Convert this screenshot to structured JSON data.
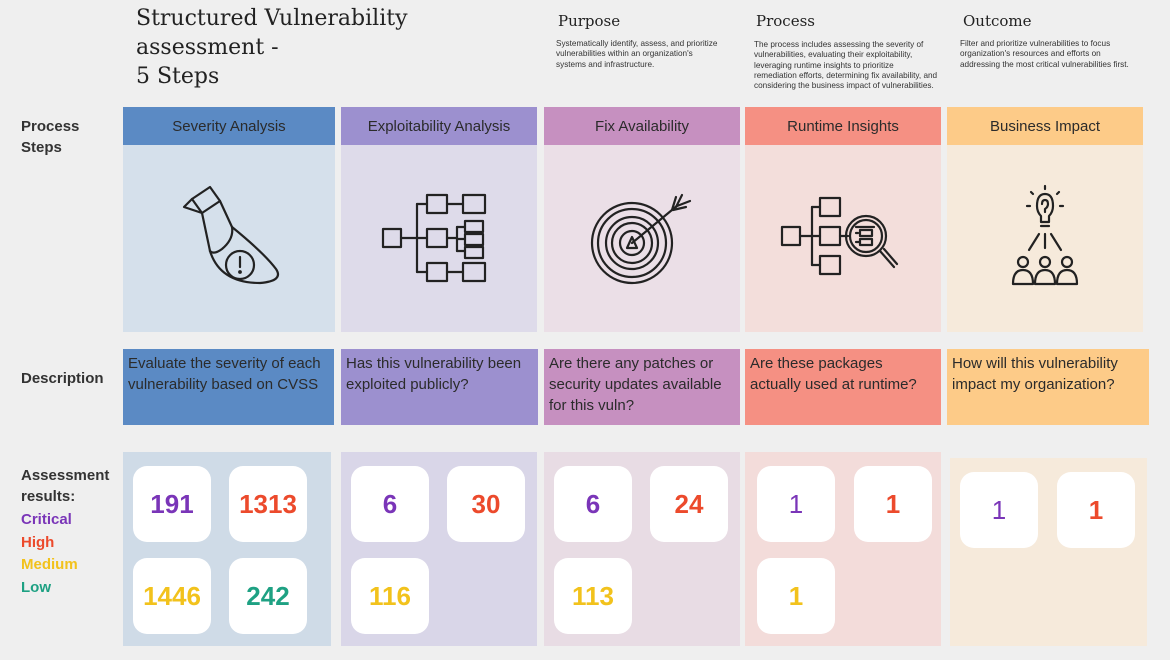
{
  "title_lines": [
    "Structured Vulnerability",
    "assessment -",
    "5 Steps"
  ],
  "headers": [
    {
      "title": "Purpose",
      "text": "Systematically identify, assess, and prioritize vulnerabilities within an organization's systems and infrastructure."
    },
    {
      "title": "Process",
      "text": "The process includes assessing the severity of vulnerabilities, evaluating their exploitability, leveraging runtime insights to prioritize remediation efforts, determining fix availability, and considering the business impact of vulnerabilities."
    },
    {
      "title": "Outcome",
      "text": "Filter and prioritize vulnerabilities to focus organization's resources and efforts on addressing the most critical vulnerabilities first."
    }
  ],
  "row_labels": {
    "process_steps": "Process Steps",
    "description": "Description",
    "assessment_results": "Assessment results:"
  },
  "legend": [
    {
      "label": "Critical",
      "color": "#7a35b8"
    },
    {
      "label": "High",
      "color": "#ec4a2c"
    },
    {
      "label": "Medium",
      "color": "#f2c21c"
    },
    {
      "label": "Low",
      "color": "#1ea183"
    }
  ],
  "colors": {
    "critical": "#7a35b8",
    "high": "#ec4a2c",
    "medium": "#f2c21c",
    "low": "#1ea183",
    "background": "#efefef"
  },
  "steps": [
    {
      "name": "Severity Analysis",
      "icon": "spotlight-warning-icon",
      "description": "Evaluate the severity of each vulnerability based on CVSS",
      "header_color": "#5b8ac4",
      "panel_color": "#d5e0eb",
      "desc_color": "#5b8ac4",
      "results_color": "#cfdbe7",
      "results": {
        "critical": "191",
        "high": "1313",
        "medium": "1446",
        "low": "242"
      }
    },
    {
      "name": "Exploitability Analysis",
      "icon": "flowchart-icon",
      "description": "Has this vulnerability been exploited publicly?",
      "header_color": "#9c90cf",
      "panel_color": "#dedbea",
      "desc_color": "#9c90cf",
      "results_color": "#d9d6e8",
      "results": {
        "critical": "6",
        "high": "30",
        "medium": "116"
      }
    },
    {
      "name": "Fix Availability",
      "icon": "target-icon",
      "description": "Are there any patches or security updates available for this vuln?",
      "header_color": "#c690c0",
      "panel_color": "#ebdfe7",
      "desc_color": "#c690c0",
      "results_color": "#e8dce4",
      "results": {
        "critical": "6",
        "high": "24",
        "medium": "113"
      }
    },
    {
      "name": "Runtime Insights",
      "icon": "flowchart-magnifier-icon",
      "description": "Are these packages actually used at runtime?",
      "header_color": "#f59083",
      "panel_color": "#f3dedb",
      "desc_color": "#f59083",
      "results_color": "#f3dcda",
      "results": {
        "critical": "1",
        "high": "1",
        "medium": "1"
      }
    },
    {
      "name": "Business Impact",
      "icon": "idea-team-icon",
      "description": "How will this vulnerability impact my organization?",
      "header_color": "#fdcb88",
      "panel_color": "#f6eadb",
      "desc_color": "#fdcb88",
      "results_color": "#f6eadb",
      "results": {
        "critical": "1",
        "high": "1"
      }
    }
  ]
}
